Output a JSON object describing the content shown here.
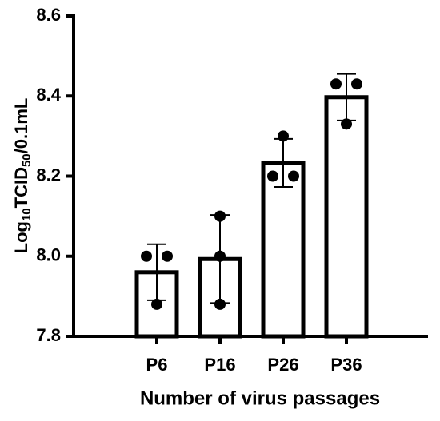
{
  "chart_data": {
    "type": "bar",
    "y_label_parts": [
      "Log",
      "10",
      "TCID",
      "50",
      "/0.1mL"
    ],
    "x_label": "Number of virus passages",
    "categories": [
      "P6",
      "P16",
      "P26",
      "P36"
    ],
    "values": [
      7.96,
      7.993,
      8.233,
      8.397
    ],
    "errors": [
      0.07,
      0.11,
      0.06,
      0.058
    ],
    "points": [
      [
        8.0,
        8.0,
        7.88
      ],
      [
        8.1,
        8.0,
        7.88
      ],
      [
        8.3,
        8.2,
        8.2
      ],
      [
        8.43,
        8.43,
        8.33
      ]
    ],
    "color": "#ffffff",
    "edge_color": "#000000",
    "ylim": [
      7.8,
      8.6
    ],
    "yticks": [
      7.8,
      {
        "value": 8,
        "label": "8.0"
      },
      8.2,
      8.4,
      8.6
    ]
  }
}
